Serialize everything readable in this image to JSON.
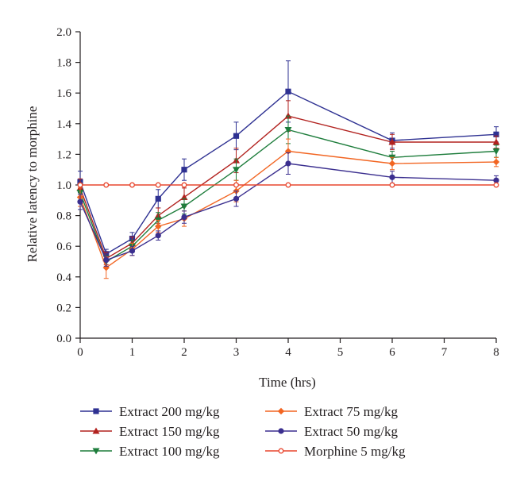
{
  "chart_data": {
    "type": "line",
    "title": "",
    "xlabel": "Time (hrs)",
    "ylabel": "Relative latency to morphine",
    "xlim": [
      0,
      8
    ],
    "ylim": [
      0,
      2.0
    ],
    "x_ticks": [
      "0",
      "1",
      "2",
      "3",
      "4",
      "5",
      "6",
      "7",
      "8"
    ],
    "y_ticks": [
      "0.0",
      "0.2",
      "0.4",
      "0.6",
      "0.8",
      "1.0",
      "1.2",
      "1.4",
      "1.6",
      "1.8",
      "2.0"
    ],
    "grid": false,
    "legend_position": "bottom",
    "series": [
      {
        "name": "Extract 200 mg/kg",
        "color": "#2e3192",
        "marker": "square",
        "x": [
          0,
          0.5,
          1,
          1.5,
          2,
          3,
          4,
          6,
          8
        ],
        "y": [
          1.02,
          0.55,
          0.65,
          0.91,
          1.1,
          1.32,
          1.61,
          1.29,
          1.33
        ],
        "err": [
          0.07,
          0.03,
          0.04,
          0.06,
          0.07,
          0.09,
          0.2,
          0.05,
          0.05
        ]
      },
      {
        "name": "Extract 150 mg/kg",
        "color": "#b2221f",
        "marker": "triangle-up",
        "x": [
          0,
          0.5,
          1,
          1.5,
          2,
          3,
          4,
          6,
          8
        ],
        "y": [
          0.98,
          0.52,
          0.62,
          0.8,
          0.92,
          1.16,
          1.45,
          1.28,
          1.28
        ],
        "err": [
          0.06,
          0.04,
          0.04,
          0.05,
          0.06,
          0.08,
          0.1,
          0.05,
          0.04
        ]
      },
      {
        "name": "Extract 100 mg/kg",
        "color": "#1e7d3c",
        "marker": "triangle-down",
        "x": [
          0,
          0.5,
          1,
          1.5,
          2,
          3,
          4,
          6,
          8
        ],
        "y": [
          0.95,
          0.5,
          0.6,
          0.77,
          0.86,
          1.1,
          1.36,
          1.18,
          1.22
        ],
        "err": [
          0.06,
          0.04,
          0.04,
          0.05,
          0.05,
          0.07,
          0.09,
          0.04,
          0.04
        ]
      },
      {
        "name": "Extract 75 mg/kg",
        "color": "#f26522",
        "marker": "diamond",
        "x": [
          0,
          0.5,
          1,
          1.5,
          2,
          3,
          4,
          6,
          8
        ],
        "y": [
          0.92,
          0.46,
          0.58,
          0.73,
          0.78,
          0.96,
          1.22,
          1.14,
          1.15
        ],
        "err": [
          0.06,
          0.07,
          0.04,
          0.04,
          0.05,
          0.07,
          0.08,
          0.04,
          0.03
        ]
      },
      {
        "name": "Extract 50 mg/kg",
        "color": "#3b2f8f",
        "marker": "circle",
        "x": [
          0,
          0.5,
          1,
          1.5,
          2,
          3,
          4,
          6,
          8
        ],
        "y": [
          0.89,
          0.51,
          0.57,
          0.67,
          0.79,
          0.91,
          1.14,
          1.05,
          1.03
        ],
        "err": [
          0.05,
          0.04,
          0.03,
          0.03,
          0.04,
          0.05,
          0.07,
          0.04,
          0.03
        ]
      },
      {
        "name": "Morphine 5 mg/kg",
        "color": "#e8472f",
        "marker": "open-circle",
        "x": [
          0,
          0.5,
          1,
          1.5,
          2,
          3,
          4,
          6,
          8
        ],
        "y": [
          1.0,
          1.0,
          1.0,
          1.0,
          1.0,
          1.0,
          1.0,
          1.0,
          1.0
        ],
        "err": [
          0,
          0,
          0,
          0,
          0,
          0,
          0,
          0,
          0
        ]
      }
    ]
  }
}
